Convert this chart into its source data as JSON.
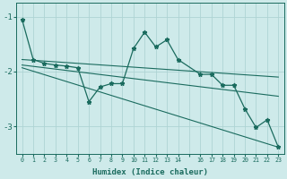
{
  "xlabel": "Humidex (Indice chaleur)",
  "bg_color": "#ceeaea",
  "line_color": "#1a6b5e",
  "grid_color": "#aed4d4",
  "xlim": [
    -0.5,
    23.5
  ],
  "ylim": [
    -3.5,
    -0.75
  ],
  "yticks": [
    -3,
    -2,
    -1
  ],
  "xticks": [
    0,
    1,
    2,
    3,
    4,
    5,
    6,
    7,
    8,
    9,
    10,
    11,
    12,
    13,
    14,
    15,
    16,
    17,
    18,
    19,
    20,
    21,
    22,
    23
  ],
  "xtick_labels": [
    "0",
    "1",
    "2",
    "3",
    "4",
    "5",
    "6",
    "7",
    "8",
    "9",
    "10",
    "11",
    "12",
    "13",
    "14",
    "",
    "16",
    "17",
    "18",
    "19",
    "20",
    "21",
    "22",
    "23"
  ],
  "main_series": {
    "x": [
      0,
      1,
      2,
      3,
      4,
      5,
      6,
      7,
      8,
      9,
      10,
      11,
      12,
      13,
      14,
      16,
      17,
      18,
      19,
      20,
      21,
      22,
      23
    ],
    "y": [
      -1.05,
      -1.78,
      -1.85,
      -1.88,
      -1.9,
      -1.93,
      -2.55,
      -2.28,
      -2.22,
      -2.22,
      -1.58,
      -1.28,
      -1.55,
      -1.42,
      -1.78,
      -2.05,
      -2.05,
      -2.25,
      -2.25,
      -2.68,
      -3.02,
      -2.88,
      -3.38
    ]
  },
  "trend_lines": [
    {
      "x": [
        0,
        23
      ],
      "y": [
        -1.78,
        -2.1
      ]
    },
    {
      "x": [
        0,
        23
      ],
      "y": [
        -1.88,
        -2.45
      ]
    },
    {
      "x": [
        0,
        23
      ],
      "y": [
        -1.93,
        -3.38
      ]
    }
  ]
}
